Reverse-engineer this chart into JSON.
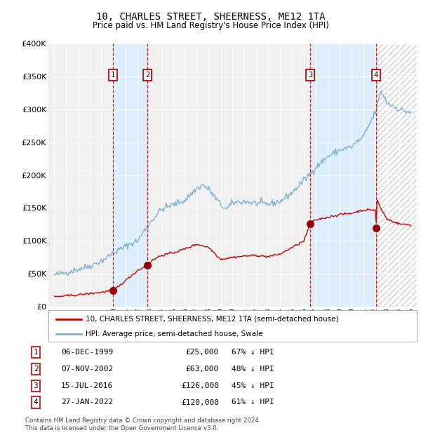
{
  "title": "10, CHARLES STREET, SHEERNESS, ME12 1TA",
  "subtitle": "Price paid vs. HM Land Registry's House Price Index (HPI)",
  "legend_line1": "10, CHARLES STREET, SHEERNESS, ME12 1TA (semi-detached house)",
  "legend_line2": "HPI: Average price, semi-detached house, Swale",
  "footnote1": "Contains HM Land Registry data © Crown copyright and database right 2024.",
  "footnote2": "This data is licensed under the Open Government Licence v3.0.",
  "hpi_color": "#7ab0d4",
  "price_color": "#cc0000",
  "marker_color": "#990000",
  "vline_color": "#cc0000",
  "shade_color": "#ddeeff",
  "background_color": "#f0f0f0",
  "grid_color": "#ffffff",
  "ylim": [
    0,
    400000
  ],
  "yticks": [
    0,
    50000,
    100000,
    150000,
    200000,
    250000,
    300000,
    350000,
    400000
  ],
  "xlim_start": 1994.5,
  "xlim_end": 2025.5,
  "transactions": [
    {
      "num": 1,
      "date_str": "06-DEC-1999",
      "year": 1999.92,
      "price": 25000,
      "pct": "67% ↓ HPI"
    },
    {
      "num": 2,
      "date_str": "07-NOV-2002",
      "year": 2002.85,
      "price": 63000,
      "pct": "48% ↓ HPI"
    },
    {
      "num": 3,
      "date_str": "15-JUL-2016",
      "year": 2016.54,
      "price": 126000,
      "pct": "45% ↓ HPI"
    },
    {
      "num": 4,
      "date_str": "27-JAN-2022",
      "year": 2022.07,
      "price": 120000,
      "pct": "61% ↓ HPI"
    }
  ]
}
